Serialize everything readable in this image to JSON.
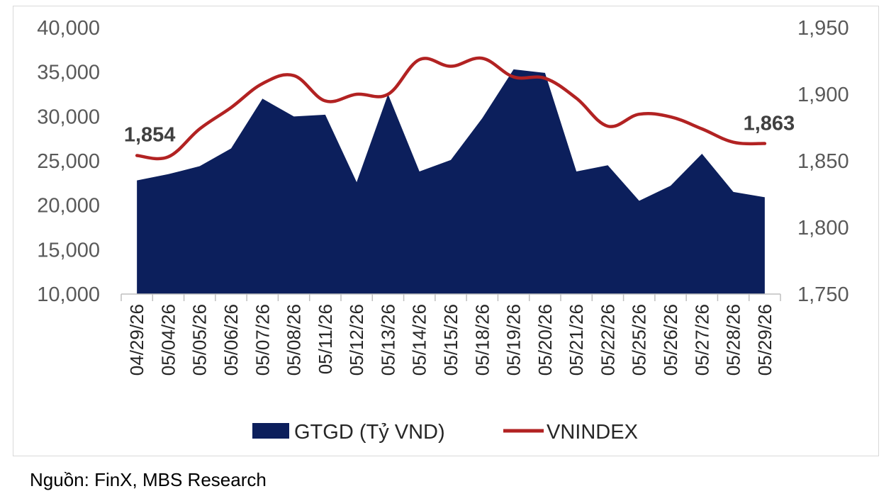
{
  "chart_data": {
    "type": "area",
    "categories": [
      "04/29/26",
      "05/04/26",
      "05/05/26",
      "05/06/26",
      "05/07/26",
      "05/08/26",
      "05/11/26",
      "05/12/26",
      "05/13/26",
      "05/14/26",
      "05/15/26",
      "05/18/26",
      "05/19/26",
      "05/20/26",
      "05/21/26",
      "05/22/26",
      "05/25/26",
      "05/26/26",
      "05/27/26",
      "05/28/26",
      "05/29/26"
    ],
    "series": [
      {
        "name": "GTGD (Tỷ VND)",
        "type": "area",
        "axis": "left",
        "color": "#0c1f5c",
        "values": [
          22800,
          23500,
          24400,
          26400,
          32000,
          30000,
          30200,
          22600,
          32500,
          23800,
          25100,
          29800,
          35300,
          34900,
          23800,
          24500,
          20500,
          22200,
          25800,
          21500,
          20900
        ]
      },
      {
        "name": "VNINDEX",
        "type": "line",
        "axis": "right",
        "color": "#b22222",
        "values": [
          1854,
          1853,
          1874,
          1890,
          1908,
          1914,
          1895,
          1900,
          1900,
          1926,
          1921,
          1927,
          1913,
          1912,
          1897,
          1876,
          1885,
          1883,
          1874,
          1864,
          1863
        ]
      }
    ],
    "y_left": {
      "min": 10000,
      "max": 40000,
      "ticks": [
        "10,000",
        "15,000",
        "20,000",
        "25,000",
        "30,000",
        "35,000",
        "40,000"
      ]
    },
    "y_right": {
      "min": 1750,
      "max": 1950,
      "ticks": [
        "1,750",
        "1,800",
        "1,850",
        "1,900",
        "1,950"
      ]
    },
    "annotations": {
      "first": "1,854",
      "last": "1,863"
    },
    "legend_position": "bottom",
    "grid": false
  },
  "source": "Nguồn: FinX, MBS Research"
}
